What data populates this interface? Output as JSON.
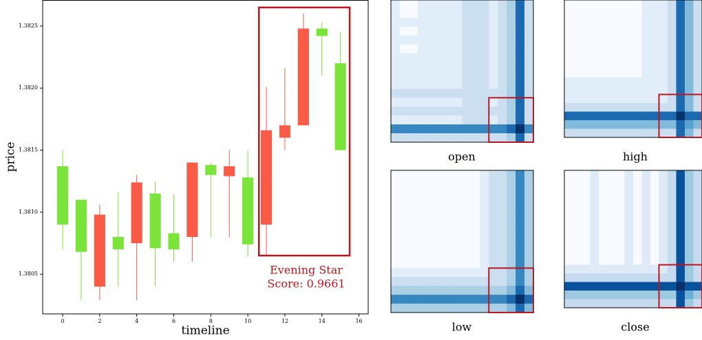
{
  "chart_data": [
    {
      "type": "candlestick",
      "xlabel": "timeline",
      "ylabel": "price",
      "x": [
        0,
        1,
        2,
        3,
        4,
        5,
        6,
        7,
        8,
        9,
        10,
        11,
        12,
        13,
        14,
        15
      ],
      "open": [
        1.3809,
        1.38068,
        1.38098,
        1.3807,
        1.38124,
        1.38071,
        1.3807,
        1.3814,
        1.3813,
        1.38137,
        1.38074,
        1.38166,
        1.3817,
        1.38248,
        1.38242,
        1.3815
      ],
      "high": [
        1.3815,
        1.3811,
        1.38106,
        1.38116,
        1.3813,
        1.38125,
        1.38114,
        1.3814,
        1.3814,
        1.3815,
        1.3815,
        1.38201,
        1.38216,
        1.3826,
        1.38253,
        1.38245
      ],
      "low": [
        1.3807,
        1.38029,
        1.38029,
        1.3804,
        1.38029,
        1.3804,
        1.3806,
        1.3806,
        1.3808,
        1.3808,
        1.38064,
        1.38065,
        1.3815,
        1.3817,
        1.3821,
        1.3815
      ],
      "close": [
        1.38137,
        1.3811,
        1.3804,
        1.3808,
        1.38075,
        1.38115,
        1.38083,
        1.3808,
        1.38138,
        1.38129,
        1.38128,
        1.3809,
        1.3816,
        1.3817,
        1.38248,
        1.3822
      ],
      "up_color": "#7be43b",
      "down_color": "#f95b47",
      "xlim": [
        -1.08,
        16.5
      ],
      "ylim": [
        1.38018,
        1.38271
      ],
      "xticks": [
        0,
        2,
        4,
        6,
        8,
        10,
        12,
        14,
        16
      ],
      "yticks": [
        {
          "value": 1.3805,
          "label": "1.3805"
        },
        {
          "value": 1.381,
          "label": "1.3810"
        },
        1.3815,
        {
          "value": 1.382,
          "label": "1.3820"
        },
        1.3825
      ],
      "highlight_x": [
        10.6,
        15.5
      ],
      "highlight_y": [
        1.38065,
        1.38265
      ],
      "highlight_color": "#c0141c",
      "annotation": [
        "Evening Star",
        "Score: 0.9661"
      ]
    },
    {
      "type": "heatmap",
      "title": "open",
      "highlight": [
        11,
        15
      ],
      "matrix": [
        [
          1,
          0,
          0,
          1,
          1,
          1,
          1,
          1,
          2,
          2,
          2,
          1,
          2,
          3,
          7,
          2
        ],
        [
          1,
          0,
          0,
          1,
          1,
          1,
          1,
          1,
          2,
          2,
          2,
          1,
          2,
          3,
          7,
          2
        ],
        [
          1,
          1,
          1,
          1,
          1,
          1,
          1,
          1,
          2,
          2,
          2,
          1,
          2,
          3,
          7,
          2
        ],
        [
          1,
          0,
          0,
          1,
          1,
          1,
          1,
          1,
          2,
          2,
          2,
          1,
          2,
          3,
          7,
          2
        ],
        [
          1,
          1,
          1,
          1,
          1,
          1,
          1,
          1,
          2,
          2,
          2,
          1,
          2,
          3,
          7,
          2
        ],
        [
          1,
          0,
          0,
          1,
          1,
          1,
          1,
          1,
          2,
          2,
          2,
          1,
          2,
          3,
          7,
          2
        ],
        [
          1,
          1,
          1,
          1,
          1,
          1,
          1,
          1,
          2,
          2,
          2,
          1,
          2,
          3,
          7,
          2
        ],
        [
          1,
          1,
          1,
          1,
          1,
          1,
          1,
          1,
          2,
          2,
          2,
          1,
          2,
          3,
          7,
          2
        ],
        [
          1,
          1,
          1,
          1,
          1,
          1,
          1,
          1,
          2,
          2,
          2,
          1,
          2,
          3,
          7,
          2
        ],
        [
          1,
          1,
          1,
          1,
          1,
          1,
          1,
          1,
          2,
          2,
          2,
          1,
          2,
          3,
          7,
          2
        ],
        [
          2,
          2,
          2,
          2,
          2,
          2,
          2,
          2,
          2,
          2,
          2,
          2,
          2,
          3,
          7,
          2
        ],
        [
          1,
          1,
          1,
          1,
          1,
          1,
          1,
          1,
          2,
          2,
          2,
          1,
          2,
          3,
          7,
          2
        ],
        [
          2,
          2,
          2,
          2,
          2,
          2,
          2,
          2,
          2,
          2,
          2,
          2,
          2,
          3,
          7,
          2
        ],
        [
          1,
          1,
          1,
          1,
          1,
          1,
          1,
          1,
          2,
          2,
          2,
          1,
          2,
          3,
          7,
          2
        ],
        [
          6,
          6,
          6,
          6,
          6,
          6,
          6,
          6,
          6,
          6,
          6,
          6,
          6,
          7,
          9,
          6
        ],
        [
          2,
          2,
          2,
          2,
          2,
          2,
          2,
          2,
          2,
          2,
          2,
          2,
          2,
          3,
          7,
          2
        ]
      ]
    },
    {
      "type": "heatmap",
      "title": "high",
      "highlight": [
        11,
        15
      ],
      "matrix": [
        [
          0,
          0,
          0,
          0,
          0,
          0,
          0,
          0,
          0,
          1,
          1,
          1,
          2,
          7,
          4,
          2
        ],
        [
          0,
          0,
          0,
          0,
          0,
          0,
          0,
          0,
          0,
          1,
          1,
          1,
          2,
          7,
          4,
          2
        ],
        [
          0,
          0,
          0,
          0,
          0,
          0,
          0,
          0,
          0,
          1,
          1,
          1,
          2,
          7,
          4,
          2
        ],
        [
          0,
          0,
          0,
          0,
          0,
          0,
          0,
          0,
          0,
          1,
          1,
          1,
          2,
          7,
          4,
          2
        ],
        [
          0,
          0,
          0,
          0,
          0,
          0,
          0,
          0,
          0,
          1,
          1,
          1,
          2,
          7,
          4,
          2
        ],
        [
          0,
          0,
          0,
          0,
          0,
          0,
          0,
          0,
          0,
          1,
          1,
          1,
          2,
          7,
          4,
          2
        ],
        [
          0,
          0,
          0,
          0,
          0,
          0,
          0,
          0,
          0,
          1,
          1,
          1,
          2,
          7,
          4,
          2
        ],
        [
          0,
          0,
          0,
          0,
          0,
          0,
          0,
          0,
          0,
          1,
          1,
          1,
          2,
          7,
          4,
          2
        ],
        [
          0,
          0,
          0,
          0,
          0,
          0,
          0,
          0,
          0,
          1,
          1,
          1,
          2,
          7,
          4,
          2
        ],
        [
          1,
          1,
          1,
          1,
          1,
          1,
          1,
          1,
          1,
          1,
          1,
          1,
          2,
          7,
          4,
          2
        ],
        [
          1,
          1,
          1,
          1,
          1,
          1,
          1,
          1,
          1,
          1,
          1,
          1,
          2,
          7,
          4,
          2
        ],
        [
          1,
          1,
          1,
          1,
          1,
          1,
          1,
          1,
          1,
          1,
          1,
          1,
          2,
          7,
          4,
          2
        ],
        [
          2,
          2,
          2,
          2,
          2,
          2,
          2,
          2,
          2,
          2,
          2,
          2,
          2,
          7,
          4,
          2
        ],
        [
          7,
          7,
          7,
          7,
          7,
          7,
          7,
          7,
          7,
          7,
          7,
          7,
          7,
          9,
          7,
          7
        ],
        [
          4,
          4,
          4,
          4,
          4,
          4,
          4,
          4,
          4,
          4,
          4,
          4,
          4,
          7,
          5,
          4
        ],
        [
          2,
          2,
          2,
          2,
          2,
          2,
          2,
          2,
          2,
          2,
          2,
          2,
          2,
          7,
          4,
          2
        ]
      ]
    },
    {
      "type": "heatmap",
      "title": "low",
      "highlight": [
        11,
        15
      ],
      "matrix": [
        [
          0,
          0,
          0,
          0,
          0,
          0,
          0,
          0,
          0,
          0,
          1,
          2,
          2,
          3,
          6,
          3
        ],
        [
          0,
          0,
          0,
          0,
          0,
          0,
          0,
          0,
          0,
          0,
          1,
          2,
          2,
          3,
          6,
          3
        ],
        [
          0,
          0,
          0,
          0,
          0,
          0,
          0,
          0,
          0,
          0,
          1,
          2,
          2,
          3,
          6,
          3
        ],
        [
          0,
          0,
          0,
          0,
          0,
          0,
          0,
          0,
          0,
          0,
          1,
          2,
          2,
          3,
          6,
          3
        ],
        [
          0,
          0,
          0,
          0,
          0,
          0,
          0,
          0,
          0,
          0,
          1,
          2,
          2,
          3,
          6,
          3
        ],
        [
          0,
          0,
          0,
          0,
          0,
          0,
          0,
          0,
          0,
          0,
          1,
          2,
          2,
          3,
          6,
          3
        ],
        [
          0,
          0,
          0,
          0,
          0,
          0,
          0,
          0,
          0,
          0,
          1,
          2,
          2,
          3,
          6,
          3
        ],
        [
          0,
          0,
          0,
          0,
          0,
          0,
          0,
          0,
          0,
          0,
          1,
          2,
          2,
          3,
          6,
          3
        ],
        [
          0,
          0,
          0,
          0,
          0,
          0,
          0,
          0,
          0,
          0,
          1,
          2,
          2,
          3,
          6,
          3
        ],
        [
          0,
          0,
          0,
          0,
          0,
          0,
          0,
          0,
          0,
          0,
          1,
          2,
          2,
          3,
          6,
          3
        ],
        [
          0,
          0,
          0,
          0,
          0,
          0,
          0,
          0,
          0,
          0,
          1,
          2,
          2,
          3,
          6,
          3
        ],
        [
          1,
          1,
          1,
          1,
          1,
          1,
          1,
          1,
          1,
          1,
          1,
          2,
          2,
          3,
          6,
          3
        ],
        [
          2,
          2,
          2,
          2,
          2,
          2,
          2,
          2,
          2,
          2,
          2,
          2,
          2,
          3,
          6,
          3
        ],
        [
          3,
          3,
          3,
          3,
          3,
          3,
          3,
          3,
          3,
          3,
          3,
          3,
          3,
          4,
          7,
          4
        ],
        [
          6,
          6,
          6,
          6,
          6,
          6,
          6,
          6,
          6,
          6,
          6,
          6,
          6,
          7,
          9,
          7
        ],
        [
          3,
          3,
          3,
          3,
          3,
          3,
          3,
          3,
          3,
          3,
          3,
          3,
          3,
          4,
          7,
          4
        ]
      ]
    },
    {
      "type": "heatmap",
      "title": "close",
      "highlight": [
        11,
        15
      ],
      "matrix": [
        [
          1,
          1,
          1,
          2,
          1,
          1,
          1,
          2,
          1,
          2,
          1,
          2,
          3,
          8,
          4,
          3
        ],
        [
          1,
          1,
          1,
          2,
          1,
          1,
          1,
          2,
          1,
          2,
          1,
          2,
          3,
          8,
          4,
          3
        ],
        [
          1,
          1,
          1,
          2,
          1,
          1,
          1,
          2,
          1,
          2,
          1,
          2,
          3,
          8,
          4,
          3
        ],
        [
          1,
          1,
          1,
          2,
          1,
          1,
          1,
          2,
          1,
          2,
          1,
          2,
          3,
          8,
          4,
          3
        ],
        [
          1,
          1,
          1,
          2,
          1,
          1,
          1,
          2,
          1,
          2,
          1,
          2,
          3,
          8,
          4,
          3
        ],
        [
          1,
          1,
          1,
          2,
          1,
          1,
          1,
          2,
          1,
          2,
          1,
          2,
          3,
          8,
          4,
          3
        ],
        [
          1,
          1,
          1,
          2,
          1,
          1,
          1,
          2,
          1,
          2,
          1,
          2,
          3,
          8,
          4,
          3
        ],
        [
          1,
          1,
          1,
          2,
          1,
          1,
          1,
          2,
          1,
          2,
          1,
          2,
          3,
          8,
          4,
          3
        ],
        [
          1,
          1,
          1,
          2,
          1,
          1,
          1,
          2,
          1,
          2,
          1,
          2,
          3,
          8,
          4,
          3
        ],
        [
          1,
          1,
          1,
          2,
          1,
          1,
          1,
          2,
          1,
          2,
          1,
          2,
          3,
          8,
          4,
          3
        ],
        [
          1,
          1,
          1,
          2,
          1,
          1,
          1,
          2,
          1,
          2,
          1,
          2,
          3,
          8,
          4,
          3
        ],
        [
          2,
          2,
          2,
          2,
          2,
          2,
          2,
          2,
          2,
          2,
          2,
          2,
          3,
          8,
          4,
          3
        ],
        [
          3,
          3,
          3,
          3,
          3,
          3,
          3,
          3,
          3,
          3,
          3,
          3,
          3,
          8,
          4,
          3
        ],
        [
          8,
          8,
          8,
          8,
          8,
          8,
          8,
          8,
          8,
          8,
          8,
          8,
          8,
          9,
          8,
          8
        ],
        [
          4,
          4,
          4,
          4,
          4,
          4,
          4,
          4,
          4,
          4,
          4,
          4,
          4,
          8,
          5,
          4
        ],
        [
          3,
          3,
          3,
          3,
          3,
          3,
          3,
          3,
          3,
          3,
          3,
          3,
          3,
          8,
          4,
          3
        ]
      ]
    }
  ]
}
